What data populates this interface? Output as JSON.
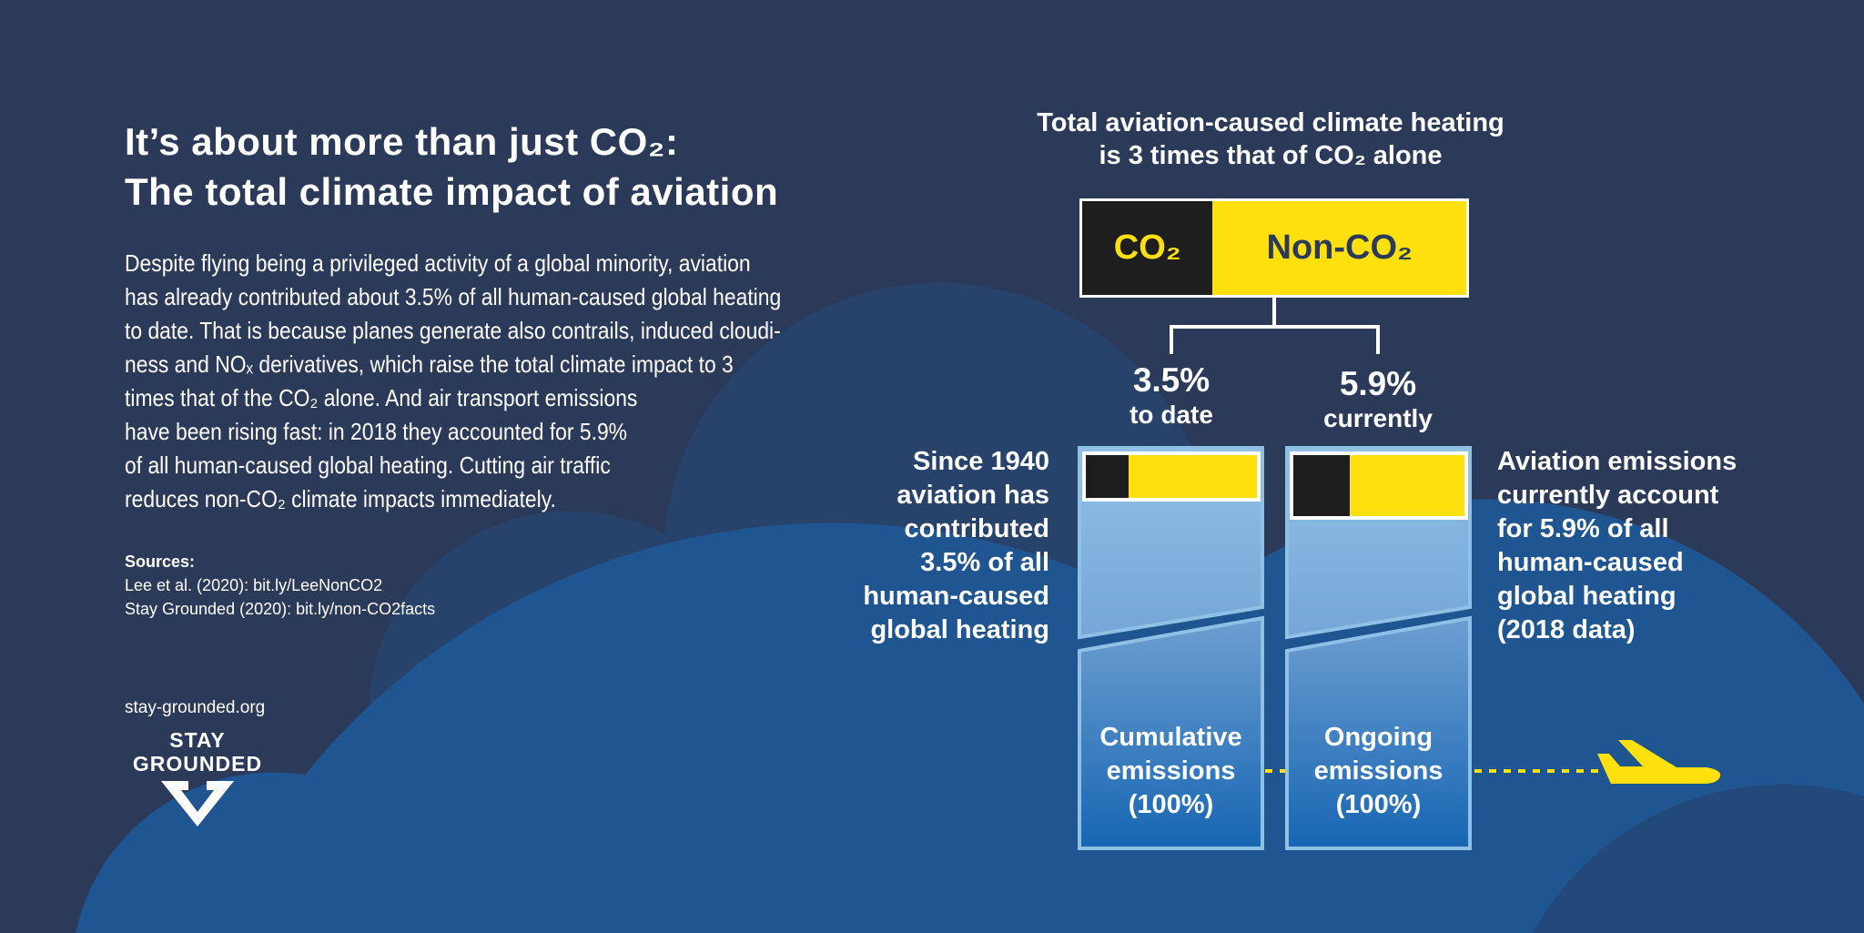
{
  "colors": {
    "background": "#2c3a5a",
    "cloud_dark": "#27426b",
    "cloud_bright": "#1f5590",
    "co2": "#1e1e1e",
    "non_co2": "#ffe00f",
    "bar_border": "#8fc0e6"
  },
  "left": {
    "title_line1": "It’s about more than just CO₂:",
    "title_line2": "The total climate impact of aviation",
    "paragraph_lines": [
      "Despite flying being a privileged activity of a global minority, aviation",
      "has already contributed about 3.5% of all human-caused global heating",
      "to date. That is because planes generate also contrails, induced cloudi-",
      "ness and NOₓ derivatives, which raise the total climate impact to 3",
      "times that of the CO₂ alone. And air transport emissions",
      "have been rising fast: in 2018 they accounted for 5.9%",
      "of all human-caused global heating. Cutting air traffic",
      "reduces non-CO₂ climate impacts immediately."
    ],
    "sources_label": "Sources:",
    "sources": [
      "Lee et al. (2020): bit.ly/LeeNonCO2",
      "Stay Grounded (2020): bit.ly/non-CO2facts"
    ],
    "website": "stay-grounded.org",
    "logo_line1": "STAY",
    "logo_line2": "GROUNDED"
  },
  "right": {
    "title_line1": "Total aviation-caused climate heating",
    "title_line2": "is 3 times that of CO₂ alone",
    "box": {
      "co2_label": "CO₂",
      "non_co2_label": "Non-CO₂",
      "co2_share": 0.34
    },
    "cumulative": {
      "value": "3.5%",
      "sub": "to date",
      "description_lines": [
        "Since 1940",
        "aviation has",
        "contributed",
        "3.5% of all",
        "human-caused",
        "global heating"
      ],
      "bar_lines": [
        "Cumulative",
        "emissions",
        "(100%)"
      ],
      "co2_share": 0.25
    },
    "ongoing": {
      "value": "5.9%",
      "sub": "currently",
      "description_lines": [
        "Aviation emissions",
        "currently account",
        "for 5.9% of all",
        "human-caused",
        "global heating",
        "(2018 data)"
      ],
      "bar_lines": [
        "Ongoing",
        "emissions",
        "(100%)"
      ],
      "co2_share": 0.33
    }
  },
  "icons": {
    "plane": "airplane-icon",
    "logo": "stay-grounded-v-logo"
  }
}
